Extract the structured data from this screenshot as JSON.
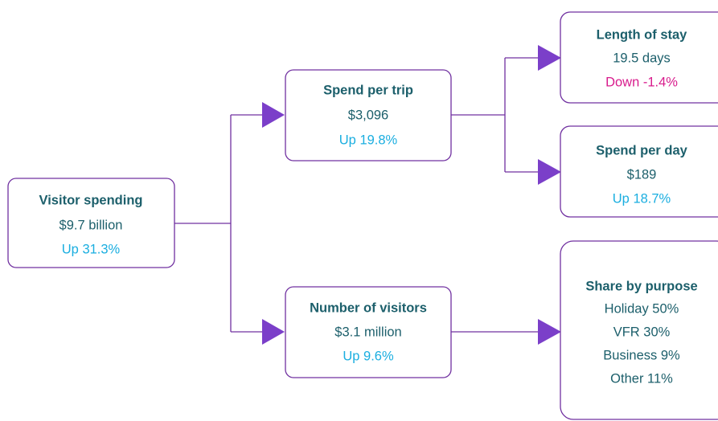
{
  "nodes": [
    {
      "title": "Visitor spending",
      "value": "$9.7 billion",
      "change": "Up 31.3%"
    },
    {
      "title": "Spend per trip",
      "value": "$3,096",
      "change": "Up 19.8%"
    },
    {
      "title": "Number of visitors",
      "value": "$3.1 million",
      "change": "Up 9.6%"
    },
    {
      "title": "Length of stay",
      "value": "19.5 days",
      "change": "Down -1.4%"
    },
    {
      "title": "Spend per day",
      "value": "$189",
      "change": "Up 18.7%"
    },
    {
      "title": "Share by purpose",
      "items": [
        "Holiday 50%",
        "VFR 30%",
        "Business 9%",
        "Other 11%"
      ]
    }
  ]
}
